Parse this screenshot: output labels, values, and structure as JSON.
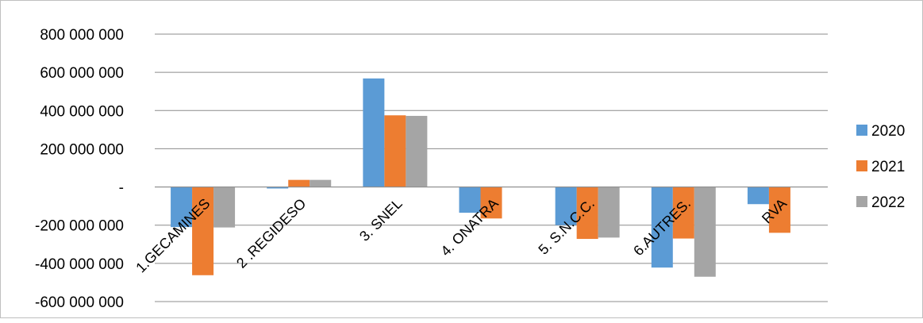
{
  "chart_data": {
    "type": "bar",
    "categories": [
      "1.GECAMINES",
      "2 .REGIDESO",
      "3. SNEL",
      "4. ONATRA",
      "5. S.N.C.C.",
      "6.AUTRES.",
      "RVA"
    ],
    "series": [
      {
        "name": "2020",
        "color": "#5b9bd5",
        "values": [
          -210000000,
          -8000000,
          568000000,
          -135000000,
          -200000000,
          -422000000,
          -90000000
        ]
      },
      {
        "name": "2021",
        "color": "#ed7d31",
        "values": [
          -462000000,
          37000000,
          375000000,
          -165000000,
          -272000000,
          -270000000,
          -240000000
        ]
      },
      {
        "name": "2022",
        "color": "#a5a5a5",
        "values": [
          -212000000,
          37000000,
          372000000,
          null,
          -265000000,
          -470000000,
          null
        ]
      }
    ],
    "ylim": [
      -600000000,
      800000000
    ],
    "ytick_values": [
      800000000,
      600000000,
      400000000,
      200000000,
      0,
      -200000000,
      -400000000,
      -600000000
    ],
    "ytick_labels": [
      "800 000 000",
      "600 000 000",
      "400 000 000",
      "200 000 000",
      "-",
      "-200 000 000",
      "-400 000 000",
      "-600 000 000"
    ],
    "grid": true,
    "legend_position": "right",
    "title": "",
    "xlabel": "",
    "ylabel": ""
  }
}
